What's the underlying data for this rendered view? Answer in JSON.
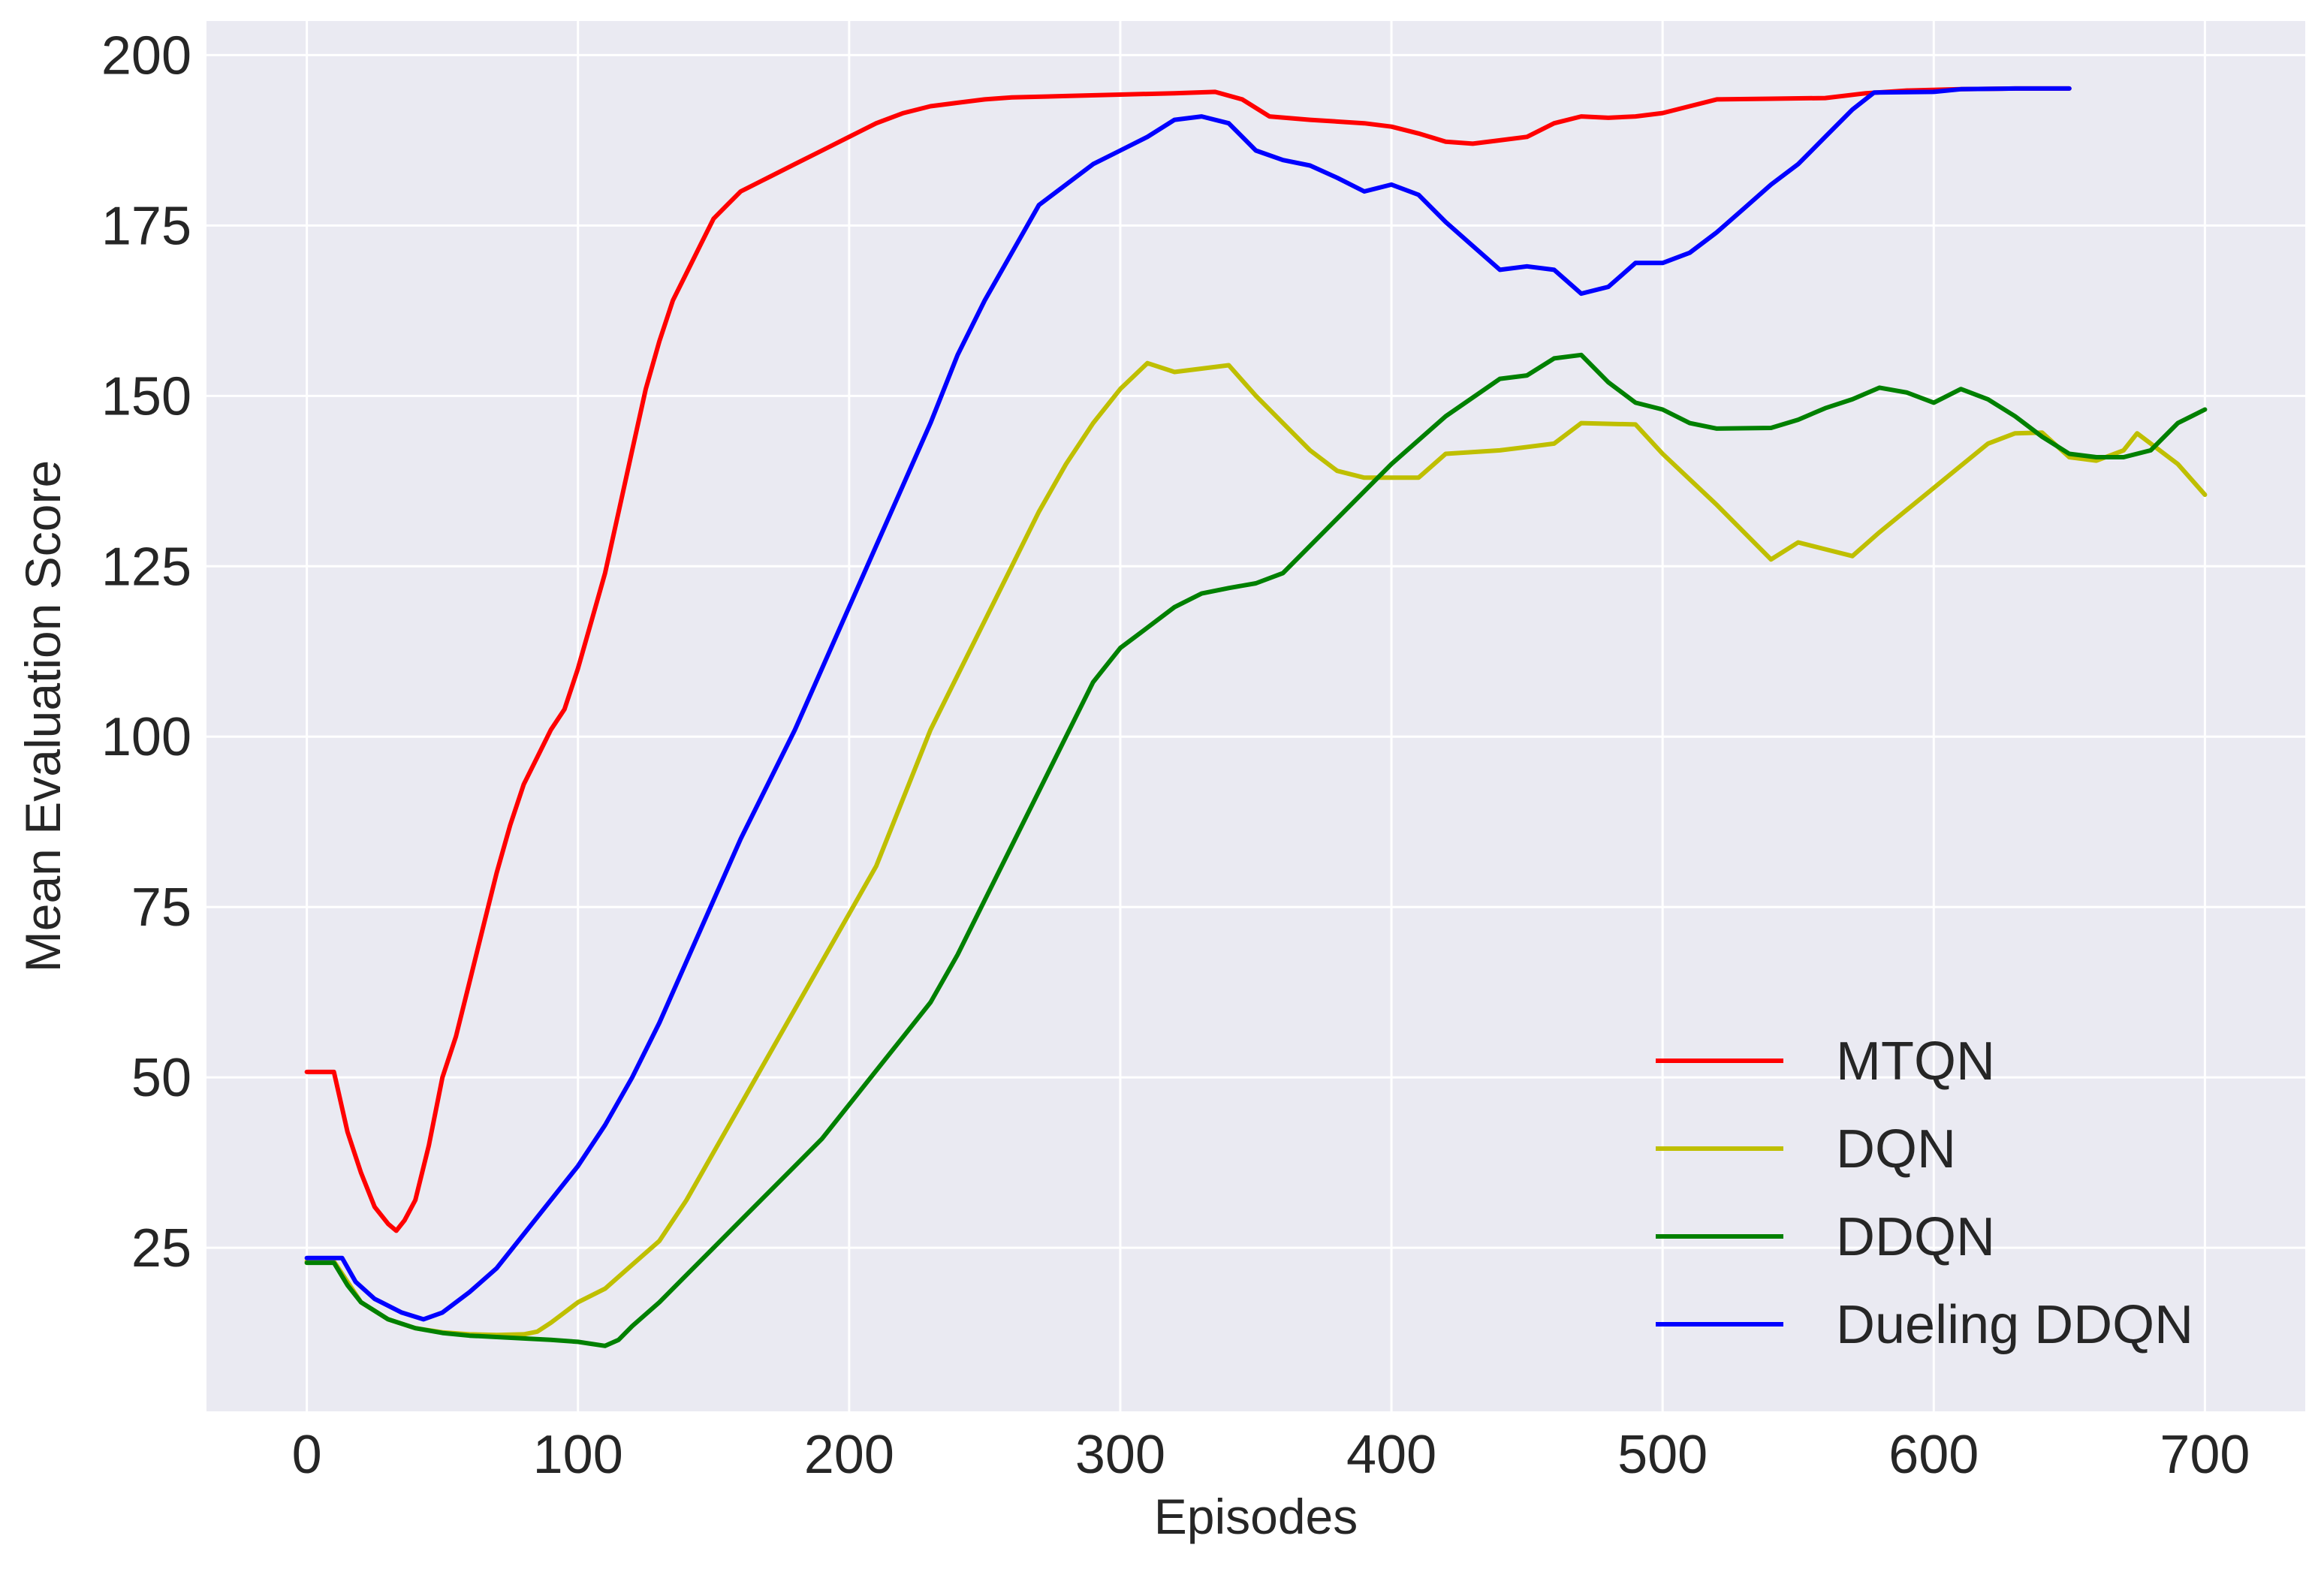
{
  "chart_data": {
    "type": "line",
    "title": "",
    "xlabel": "Episodes",
    "ylabel": "Mean Evaluation Score",
    "xlim": [
      -37,
      737
    ],
    "ylim": [
      1,
      205
    ],
    "x_ticks": [
      0,
      100,
      200,
      300,
      400,
      500,
      600,
      700
    ],
    "y_ticks": [
      25,
      50,
      75,
      100,
      125,
      150,
      175,
      200
    ],
    "grid": true,
    "background": "#EAEAF2",
    "grid_color": "#FFFFFF",
    "legend_position": "lower-right",
    "series": [
      {
        "name": "MTQN",
        "color": "#FF0000",
        "points": [
          [
            0,
            50.8
          ],
          [
            10,
            50.8
          ],
          [
            15,
            42
          ],
          [
            20,
            36
          ],
          [
            25,
            31
          ],
          [
            30,
            28.5
          ],
          [
            33,
            27.5
          ],
          [
            36,
            29
          ],
          [
            40,
            32
          ],
          [
            45,
            40
          ],
          [
            50,
            50
          ],
          [
            55,
            56
          ],
          [
            60,
            64
          ],
          [
            65,
            72
          ],
          [
            70,
            80
          ],
          [
            75,
            87
          ],
          [
            80,
            93
          ],
          [
            85,
            97
          ],
          [
            90,
            101
          ],
          [
            95,
            104
          ],
          [
            100,
            110
          ],
          [
            105,
            117
          ],
          [
            110,
            124
          ],
          [
            115,
            133
          ],
          [
            120,
            142
          ],
          [
            125,
            151
          ],
          [
            130,
            158
          ],
          [
            135,
            164
          ],
          [
            140,
            168
          ],
          [
            145,
            172
          ],
          [
            150,
            176
          ],
          [
            155,
            178
          ],
          [
            160,
            180
          ],
          [
            170,
            182
          ],
          [
            180,
            184
          ],
          [
            190,
            186
          ],
          [
            200,
            188
          ],
          [
            210,
            190
          ],
          [
            220,
            191.5
          ],
          [
            230,
            192.5
          ],
          [
            240,
            193
          ],
          [
            250,
            193.5
          ],
          [
            260,
            193.8
          ],
          [
            280,
            194
          ],
          [
            300,
            194.2
          ],
          [
            320,
            194.4
          ],
          [
            335,
            194.6
          ],
          [
            345,
            193.5
          ],
          [
            355,
            191
          ],
          [
            370,
            190.5
          ],
          [
            390,
            190
          ],
          [
            400,
            189.5
          ],
          [
            410,
            188.5
          ],
          [
            420,
            187.3
          ],
          [
            430,
            187
          ],
          [
            440,
            187.5
          ],
          [
            450,
            188
          ],
          [
            460,
            190
          ],
          [
            470,
            191
          ],
          [
            480,
            190.8
          ],
          [
            490,
            191
          ],
          [
            500,
            191.5
          ],
          [
            510,
            192.5
          ],
          [
            520,
            193.5
          ],
          [
            540,
            193.6
          ],
          [
            560,
            193.7
          ],
          [
            575,
            194.4
          ],
          [
            590,
            194.8
          ],
          [
            610,
            195
          ],
          [
            630,
            195.1
          ],
          [
            650,
            195.1
          ]
        ]
      },
      {
        "name": "DQN",
        "color": "#BFBF00",
        "points": [
          [
            0,
            23
          ],
          [
            10,
            23
          ],
          [
            15,
            20
          ],
          [
            20,
            17
          ],
          [
            30,
            14.5
          ],
          [
            40,
            13.2
          ],
          [
            50,
            12.6
          ],
          [
            60,
            12.3
          ],
          [
            70,
            12.2
          ],
          [
            80,
            12.3
          ],
          [
            85,
            12.7
          ],
          [
            90,
            14
          ],
          [
            95,
            15.5
          ],
          [
            100,
            17
          ],
          [
            110,
            19
          ],
          [
            120,
            22.5
          ],
          [
            130,
            26
          ],
          [
            140,
            32
          ],
          [
            150,
            39
          ],
          [
            160,
            46
          ],
          [
            170,
            53
          ],
          [
            180,
            60
          ],
          [
            190,
            67
          ],
          [
            200,
            74
          ],
          [
            210,
            81
          ],
          [
            220,
            91
          ],
          [
            230,
            101
          ],
          [
            240,
            109
          ],
          [
            250,
            117
          ],
          [
            260,
            125
          ],
          [
            270,
            133
          ],
          [
            280,
            140
          ],
          [
            290,
            146
          ],
          [
            300,
            151
          ],
          [
            310,
            154.8
          ],
          [
            320,
            153.5
          ],
          [
            330,
            154
          ],
          [
            340,
            154.5
          ],
          [
            350,
            150
          ],
          [
            360,
            146
          ],
          [
            370,
            142
          ],
          [
            380,
            139
          ],
          [
            390,
            138
          ],
          [
            400,
            138
          ],
          [
            410,
            138
          ],
          [
            420,
            141.5
          ],
          [
            440,
            142
          ],
          [
            460,
            143
          ],
          [
            470,
            146
          ],
          [
            490,
            145.8
          ],
          [
            500,
            141.5
          ],
          [
            520,
            134
          ],
          [
            540,
            126
          ],
          [
            550,
            128.5
          ],
          [
            560,
            127.5
          ],
          [
            570,
            126.5
          ],
          [
            580,
            130
          ],
          [
            600,
            136.5
          ],
          [
            620,
            143
          ],
          [
            630,
            144.5
          ],
          [
            640,
            144.6
          ],
          [
            650,
            141
          ],
          [
            660,
            140.5
          ],
          [
            670,
            142
          ],
          [
            675,
            144.5
          ],
          [
            690,
            140
          ],
          [
            700,
            135.5
          ]
        ]
      },
      {
        "name": "DDQN",
        "color": "#008000",
        "points": [
          [
            0,
            22.8
          ],
          [
            10,
            22.8
          ],
          [
            15,
            19.5
          ],
          [
            20,
            17
          ],
          [
            30,
            14.5
          ],
          [
            40,
            13.2
          ],
          [
            50,
            12.5
          ],
          [
            60,
            12.1
          ],
          [
            70,
            11.9
          ],
          [
            80,
            11.7
          ],
          [
            90,
            11.5
          ],
          [
            100,
            11.2
          ],
          [
            105,
            10.9
          ],
          [
            110,
            10.6
          ],
          [
            115,
            11.5
          ],
          [
            120,
            13.5
          ],
          [
            130,
            17
          ],
          [
            140,
            21
          ],
          [
            150,
            25
          ],
          [
            160,
            29
          ],
          [
            170,
            33
          ],
          [
            180,
            37
          ],
          [
            190,
            41
          ],
          [
            200,
            46
          ],
          [
            210,
            51
          ],
          [
            220,
            56
          ],
          [
            230,
            61
          ],
          [
            240,
            68
          ],
          [
            250,
            76
          ],
          [
            260,
            84
          ],
          [
            270,
            92
          ],
          [
            280,
            100
          ],
          [
            290,
            108
          ],
          [
            300,
            113
          ],
          [
            310,
            116
          ],
          [
            320,
            119
          ],
          [
            330,
            121
          ],
          [
            340,
            121.8
          ],
          [
            350,
            122.5
          ],
          [
            360,
            124
          ],
          [
            380,
            132
          ],
          [
            400,
            140
          ],
          [
            420,
            147
          ],
          [
            440,
            152.5
          ],
          [
            450,
            153
          ],
          [
            460,
            155.5
          ],
          [
            470,
            156
          ],
          [
            480,
            152
          ],
          [
            490,
            149
          ],
          [
            500,
            148
          ],
          [
            510,
            146
          ],
          [
            520,
            145.2
          ],
          [
            540,
            145.3
          ],
          [
            550,
            146.5
          ],
          [
            560,
            148.2
          ],
          [
            570,
            149.5
          ],
          [
            580,
            151.2
          ],
          [
            590,
            150.5
          ],
          [
            600,
            149
          ],
          [
            610,
            151
          ],
          [
            620,
            149.5
          ],
          [
            630,
            147
          ],
          [
            640,
            144
          ],
          [
            650,
            141.5
          ],
          [
            660,
            141
          ],
          [
            670,
            141
          ],
          [
            680,
            142
          ],
          [
            690,
            146
          ],
          [
            700,
            148
          ]
        ]
      },
      {
        "name": "Dueling DDQN",
        "color": "#0000FF",
        "points": [
          [
            0,
            23.5
          ],
          [
            13,
            23.5
          ],
          [
            18,
            20
          ],
          [
            25,
            17.5
          ],
          [
            35,
            15.5
          ],
          [
            43,
            14.5
          ],
          [
            50,
            15.5
          ],
          [
            60,
            18.5
          ],
          [
            70,
            22
          ],
          [
            80,
            27
          ],
          [
            90,
            32
          ],
          [
            100,
            37
          ],
          [
            110,
            43
          ],
          [
            120,
            50
          ],
          [
            130,
            58
          ],
          [
            140,
            67
          ],
          [
            150,
            76
          ],
          [
            160,
            85
          ],
          [
            170,
            93
          ],
          [
            180,
            101
          ],
          [
            190,
            110
          ],
          [
            200,
            119
          ],
          [
            210,
            128
          ],
          [
            220,
            137
          ],
          [
            230,
            146
          ],
          [
            240,
            156
          ],
          [
            250,
            164
          ],
          [
            260,
            171
          ],
          [
            270,
            178
          ],
          [
            280,
            181
          ],
          [
            290,
            184
          ],
          [
            300,
            186
          ],
          [
            310,
            188
          ],
          [
            320,
            190.5
          ],
          [
            330,
            191
          ],
          [
            340,
            190
          ],
          [
            350,
            186
          ],
          [
            360,
            184.6
          ],
          [
            370,
            183.8
          ],
          [
            380,
            182
          ],
          [
            390,
            180
          ],
          [
            400,
            181
          ],
          [
            410,
            179.5
          ],
          [
            420,
            175.5
          ],
          [
            430,
            172
          ],
          [
            440,
            168.5
          ],
          [
            450,
            169
          ],
          [
            460,
            168.5
          ],
          [
            470,
            165
          ],
          [
            480,
            166
          ],
          [
            490,
            169.5
          ],
          [
            500,
            169.5
          ],
          [
            510,
            171
          ],
          [
            520,
            174
          ],
          [
            530,
            177.5
          ],
          [
            540,
            181
          ],
          [
            550,
            184
          ],
          [
            560,
            188
          ],
          [
            570,
            192
          ],
          [
            578,
            194.5
          ],
          [
            600,
            194.6
          ],
          [
            610,
            195
          ],
          [
            630,
            195.1
          ],
          [
            650,
            195.1
          ]
        ]
      }
    ]
  }
}
